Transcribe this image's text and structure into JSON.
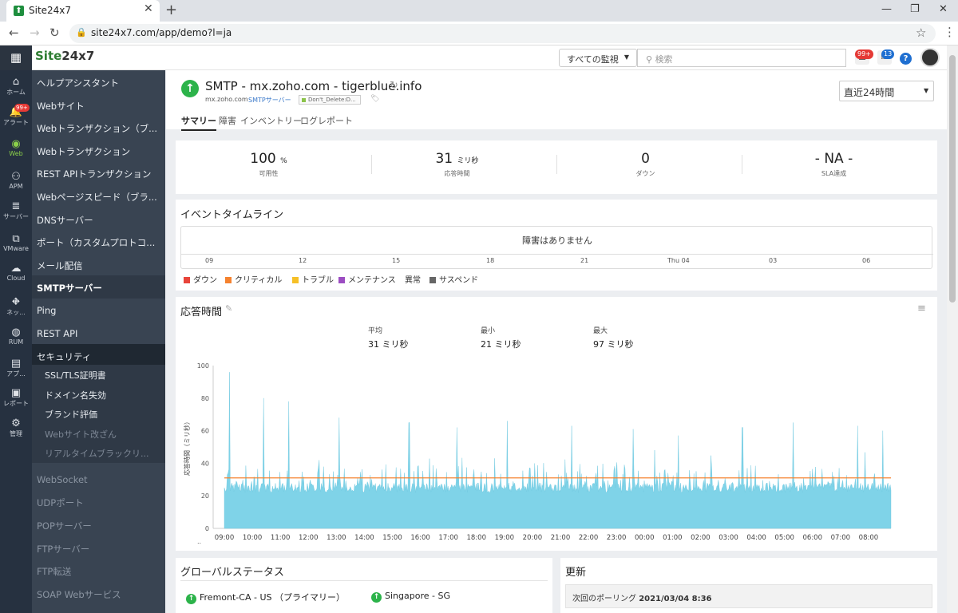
{
  "browser": {
    "tab_title": "Site24x7",
    "favicon_glyph": "⬆",
    "url": "site24x7.com/app/demo?l=ja"
  },
  "header": {
    "logo_main": "Site",
    "logo_suffix": "24x7",
    "monitor_select": "すべての監視",
    "search_placeholder": "検索",
    "alarm_badge": "99+",
    "message_badge": "13"
  },
  "iconbar": [
    {
      "label": "ホーム",
      "icon": "home-icon",
      "glyph": "⌂"
    },
    {
      "label": "アラート",
      "icon": "bell-icon",
      "glyph": "🔔",
      "badge": "99+"
    },
    {
      "label": "Web",
      "icon": "globe-icon",
      "glyph": "◉",
      "active": true
    },
    {
      "label": "APM",
      "icon": "apm-icon",
      "glyph": "⚇"
    },
    {
      "label": "サーバー",
      "icon": "server-icon",
      "glyph": "≣"
    },
    {
      "label": "VMware",
      "icon": "vmware-icon",
      "glyph": "⧉"
    },
    {
      "label": "Cloud",
      "icon": "cloud-icon",
      "glyph": "☁"
    },
    {
      "label": "ネッ...",
      "icon": "network-icon",
      "glyph": "⛖"
    },
    {
      "label": "RUM",
      "icon": "rum-icon",
      "glyph": "◍"
    },
    {
      "label": "アプ...",
      "icon": "app-icon",
      "glyph": "▤"
    },
    {
      "label": "レポート",
      "icon": "report-icon",
      "glyph": "▣"
    },
    {
      "label": "管理",
      "icon": "gear-icon",
      "glyph": "⚙"
    }
  ],
  "menu": [
    {
      "label": "ヘルプアシスタント"
    },
    {
      "label": "Webサイト"
    },
    {
      "label": "Webトランザクション（ブ..."
    },
    {
      "label": "Webトランザクション"
    },
    {
      "label": "REST APIトランザクション"
    },
    {
      "label": "Webページスピード（ブラ..."
    },
    {
      "label": "DNSサーバー"
    },
    {
      "label": "ポート（カスタムプロトコ..."
    },
    {
      "label": "メール配信"
    },
    {
      "label": "SMTPサーバー",
      "active": true
    },
    {
      "label": "Ping"
    },
    {
      "label": "REST API"
    }
  ],
  "security": {
    "label": "セキュリティ",
    "items": [
      "SSL/TLS証明書",
      "ドメイン名失効",
      "ブランド評価",
      "Webサイト改ざん",
      "リアルタイムブラックリ..."
    ]
  },
  "menu_tail": [
    "WebSocket",
    "UDPポート",
    "POPサーバー",
    "FTPサーバー",
    "FTP転送",
    "SOAP Webサービス"
  ],
  "monitor": {
    "title": "SMTP - mx.zoho.com - tigerblue.info",
    "host": "mx.zoho.com",
    "type": "SMTPサーバー",
    "tag": "Don't_Delete:D...",
    "time_range": "直近24時間",
    "tabs": [
      "サマリー",
      "障害",
      "インベントリー",
      "ログレポート"
    ]
  },
  "kpis": [
    {
      "value": "100",
      "unit": "%",
      "label": "可用性"
    },
    {
      "value": "31",
      "unit": "ミリ秒",
      "label": "応答時間"
    },
    {
      "value": "0",
      "unit": "",
      "label": "ダウン"
    },
    {
      "value": "- NA -",
      "unit": "",
      "label": "SLA達成"
    }
  ],
  "event_timeline": {
    "title": "イベントタイムライン",
    "message": "障害はありません",
    "ticks": [
      "09",
      "12",
      "15",
      "18",
      "21",
      "Thu 04",
      "03",
      "06"
    ],
    "legend": [
      {
        "label": "ダウン",
        "color": "#e8443a"
      },
      {
        "label": "クリティカル",
        "color": "#f5822f"
      },
      {
        "label": "トラブル",
        "color": "#f6c027"
      },
      {
        "label": "メンテナンス",
        "color": "#9c4dc2"
      },
      {
        "label": "異常",
        "color": ""
      },
      {
        "label": "サスペンド",
        "color": "#666666"
      }
    ]
  },
  "response": {
    "title": "応答時間",
    "stats": [
      {
        "label": "平均",
        "value": "31 ミリ秒"
      },
      {
        "label": "最小",
        "value": "21 ミリ秒"
      },
      {
        "label": "最大",
        "value": "97 ミリ秒"
      }
    ]
  },
  "chart_data": {
    "type": "area",
    "ylabel": "応答時間（ミリ秒）",
    "ylim": [
      0,
      100
    ],
    "yticks": [
      0,
      20,
      40,
      60,
      80,
      100
    ],
    "x_ticks": [
      "09:00",
      "10:00",
      "11:00",
      "12:00",
      "13:00",
      "14:00",
      "15:00",
      "16:00",
      "17:00",
      "18:00",
      "19:00",
      "20:00",
      "21:00",
      "22:00",
      "23:00",
      "00:00",
      "01:00",
      "02:00",
      "03:00",
      "04:00",
      "05:00",
      "06:00",
      "07:00",
      "08:00"
    ],
    "x_prefix": "..",
    "average": 31,
    "area_color": "#7fd3e8",
    "avg_color": "#f5822f",
    "peaks": [
      {
        "t": 0.18,
        "v": 96
      },
      {
        "t": 1.4,
        "v": 80
      },
      {
        "t": 2.3,
        "v": 78
      },
      {
        "t": 4.1,
        "v": 68
      },
      {
        "t": 6.6,
        "v": 65
      },
      {
        "t": 8.3,
        "v": 62
      },
      {
        "t": 10.1,
        "v": 66
      },
      {
        "t": 12.4,
        "v": 63
      },
      {
        "t": 14.6,
        "v": 61
      },
      {
        "t": 16.2,
        "v": 57
      },
      {
        "t": 18.5,
        "v": 62
      },
      {
        "t": 20.3,
        "v": 65
      },
      {
        "t": 22.6,
        "v": 63
      },
      {
        "t": 23.5,
        "v": 60
      }
    ]
  },
  "global_status": {
    "title": "グローバルステータス",
    "locations": [
      "Fremont-CA - US （プライマリー）",
      "Singapore - SG"
    ]
  },
  "update": {
    "title": "更新",
    "poll_label": "次回のポーリング",
    "poll_time": "2021/03/04 8:36"
  }
}
